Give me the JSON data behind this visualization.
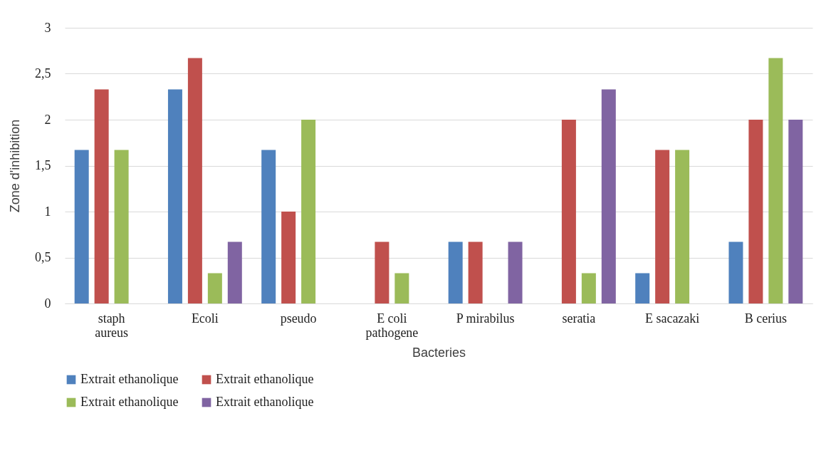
{
  "chart_data": {
    "type": "bar",
    "xlabel": "Bacteries",
    "ylabel": "Zone d'inhibition",
    "categories": [
      "staph aureus",
      "Ecoli",
      "pseudo",
      "E coli pathogene",
      "P mirabilus",
      "seratia",
      "E sacazaki",
      "B cerius"
    ],
    "series": [
      {
        "name": "Extrait ethanolique",
        "color": "#4f81bd",
        "values": [
          1.67,
          2.33,
          1.67,
          0,
          0.67,
          0,
          0.33,
          0.67
        ]
      },
      {
        "name": "Extrait ethanolique",
        "color": "#c0504d",
        "values": [
          2.33,
          2.67,
          1.0,
          0.67,
          0.67,
          2.0,
          1.67,
          2.0
        ]
      },
      {
        "name": "Extrait ethanolique",
        "color": "#9bbb59",
        "values": [
          1.67,
          0.33,
          2.0,
          0.33,
          0,
          0.33,
          1.67,
          2.67
        ]
      },
      {
        "name": "Extrait ethanolique",
        "color": "#8064a2",
        "values": [
          0,
          0.67,
          0,
          0,
          0.67,
          2.33,
          0,
          2.0
        ]
      }
    ],
    "ylim": [
      0,
      3
    ],
    "yticks": [
      {
        "value": 0,
        "label": "0"
      },
      {
        "value": 0.5,
        "label": "0,5"
      },
      {
        "value": 1,
        "label": "1"
      },
      {
        "value": 1.5,
        "label": "1,5"
      },
      {
        "value": 2,
        "label": "2"
      },
      {
        "value": 2.5,
        "label": "2,5"
      },
      {
        "value": 3,
        "label": "3"
      }
    ],
    "grid": "y",
    "legend": "bottom"
  }
}
